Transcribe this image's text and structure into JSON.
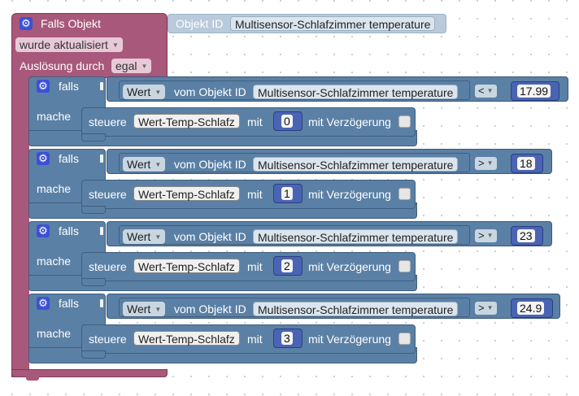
{
  "trigger": {
    "title": "Falls Objekt",
    "object_id_label": "Objekt ID",
    "object_id_value": "Multisensor-Schlafzimmer temperature",
    "event_value": "wurde aktualisiert",
    "trigger_label": "Auslösung durch",
    "trigger_value": "egal"
  },
  "conditions": [
    {
      "if_label": "falls",
      "do_label": "mache",
      "value_type": "Wert",
      "of_object_label": "vom Objekt ID",
      "object_value": "Multisensor-Schlafzimmer temperature",
      "operator": "<",
      "threshold": "17.99",
      "control_label": "steuere",
      "variable": "Wert-Temp-Schlafz",
      "with_label": "mit",
      "set_value": "0",
      "delay_label": "mit Verzögerung"
    },
    {
      "if_label": "falls",
      "do_label": "mache",
      "value_type": "Wert",
      "of_object_label": "vom Objekt ID",
      "object_value": "Multisensor-Schlafzimmer temperature",
      "operator": ">",
      "threshold": "18",
      "control_label": "steuere",
      "variable": "Wert-Temp-Schlafz",
      "with_label": "mit",
      "set_value": "1",
      "delay_label": "mit Verzögerung"
    },
    {
      "if_label": "falls",
      "do_label": "mache",
      "value_type": "Wert",
      "of_object_label": "vom Objekt ID",
      "object_value": "Multisensor-Schlafzimmer temperature",
      "operator": ">",
      "threshold": "23",
      "control_label": "steuere",
      "variable": "Wert-Temp-Schlafz",
      "with_label": "mit",
      "set_value": "2",
      "delay_label": "mit Verzögerung"
    },
    {
      "if_label": "falls",
      "do_label": "mache",
      "value_type": "Wert",
      "of_object_label": "vom Objekt ID",
      "object_value": "Multisensor-Schlafzimmer temperature",
      "operator": ">",
      "threshold": "24.9",
      "control_label": "steuere",
      "variable": "Wert-Temp-Schlafz",
      "with_label": "mit",
      "set_value": "3",
      "delay_label": "mit Verzögerung"
    }
  ],
  "icons": {
    "gear": "gear-icon",
    "dropdown": "dropdown-arrow-icon"
  },
  "colors": {
    "trigger_block": "#a8587a",
    "if_block": "#5b80a5",
    "number_block": "#4a64b4",
    "gear_icon": "#3c50d6"
  }
}
